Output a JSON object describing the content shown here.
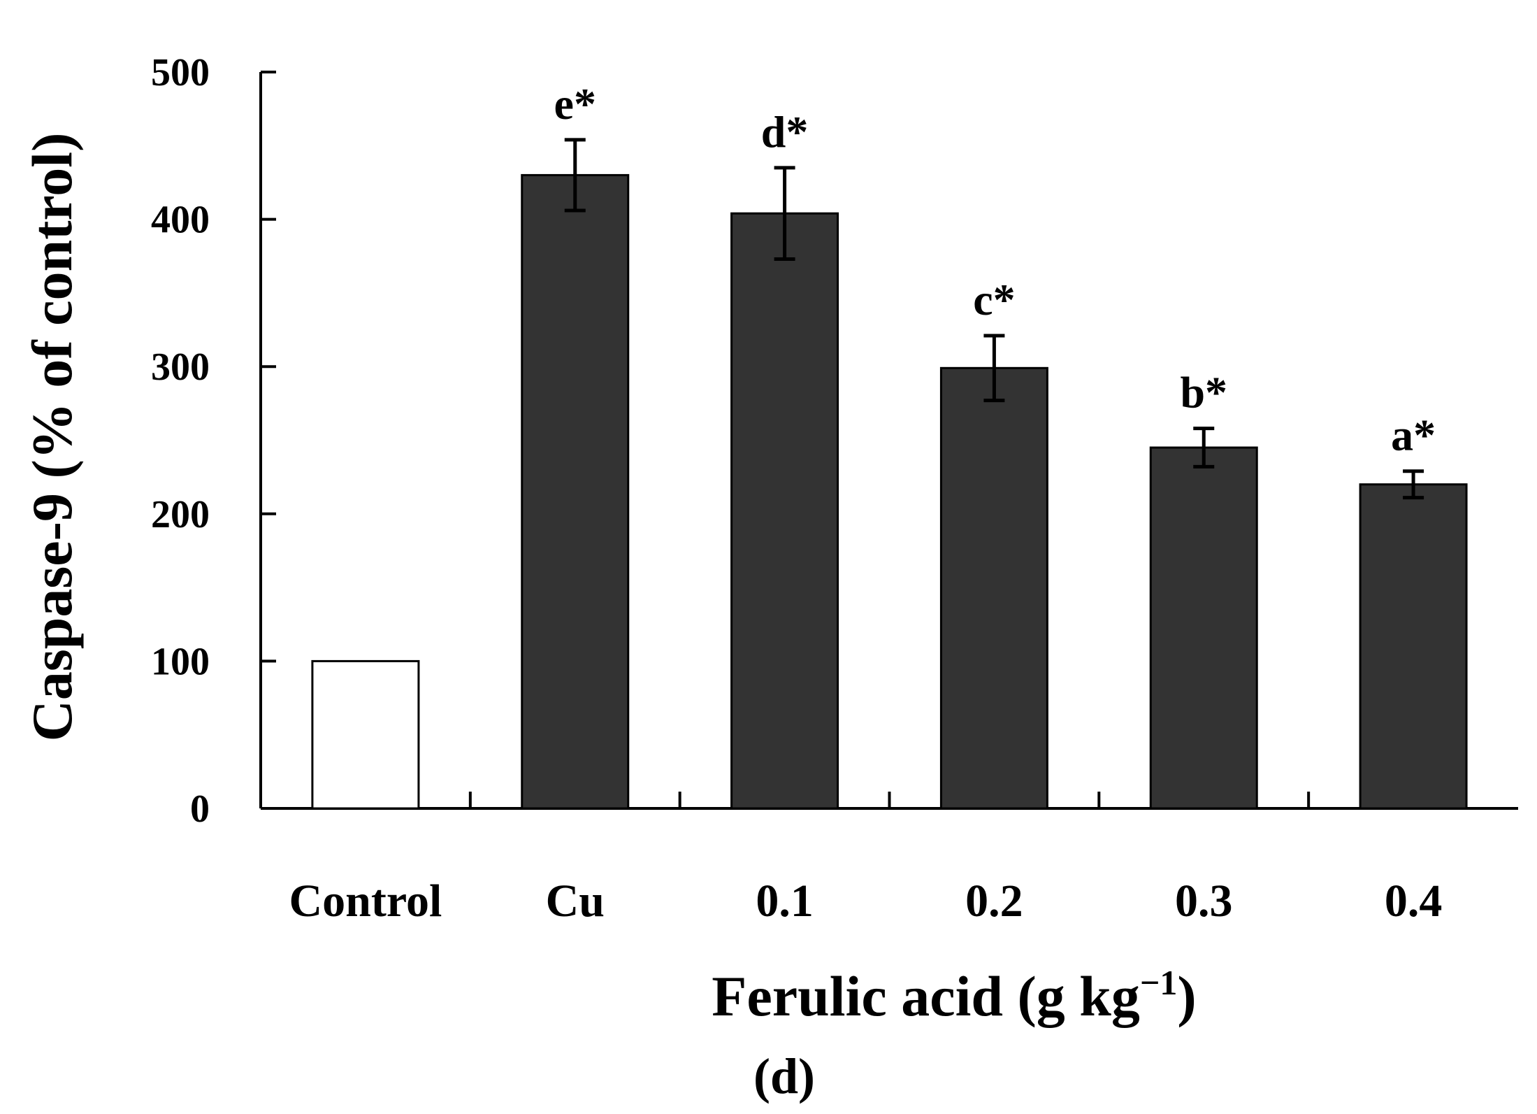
{
  "chart_data": {
    "type": "bar",
    "categories": [
      "Control",
      "Cu",
      "0.1",
      "0.2",
      "0.3",
      "0.4"
    ],
    "values": [
      100,
      430,
      404,
      299,
      245,
      220
    ],
    "errors": [
      0,
      24,
      31,
      22,
      13,
      9
    ],
    "significance_labels": [
      "",
      "e*",
      "d*",
      "c*",
      "b*",
      "a*"
    ],
    "bar_colors": [
      "#ffffff",
      "#333333",
      "#333333",
      "#333333",
      "#333333",
      "#333333"
    ],
    "ylabel": "Caspase-9 (% of control)",
    "xlabel": "Ferulic acid (g kg",
    "xlabel_sup": "−1",
    "xlabel_close": ")",
    "yticks": [
      "0",
      "100",
      "200",
      "300",
      "400",
      "500"
    ],
    "ylim": [
      0,
      500
    ],
    "grid": false,
    "panel_label": "(d)"
  }
}
